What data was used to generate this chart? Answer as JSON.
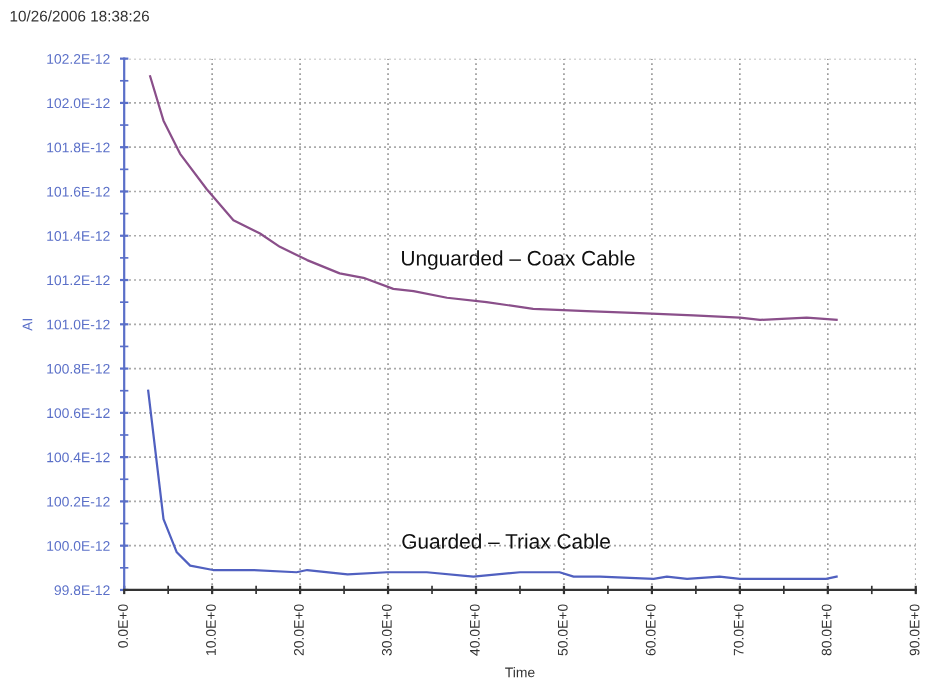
{
  "chart_data": {
    "type": "line",
    "title": "10/26/2006 18:38:26",
    "xlabel": "Time",
    "ylabel": "AI",
    "series": [
      {
        "color": "#8a4f8a",
        "x": [
          2.95,
          4.47,
          6.36,
          9.39,
          12.42,
          15.45,
          17.7,
          20.8,
          24.5,
          27.2,
          30.6,
          32.9,
          36.7,
          41.2,
          46.5,
          52.6,
          58.6,
          64.7,
          70.0,
          72.3,
          77.6,
          81.0
        ],
        "values": [
          1.0212e-10,
          1.0192e-10,
          1.0177e-10,
          1.0161e-10,
          1.0147e-10,
          1.0141e-10,
          1.0135e-10,
          1.0129e-10,
          1.0123e-10,
          1.0121e-10,
          1.0116e-10,
          1.0115e-10,
          1.0112e-10,
          1.011e-10,
          1.0107e-10,
          1.0106e-10,
          1.0105e-10,
          1.0104e-10,
          1.0103e-10,
          1.0102e-10,
          1.0103e-10,
          1.0102e-10
        ]
      },
      {
        "color": "#5060c0",
        "x": [
          2.73,
          4.47,
          5.98,
          7.5,
          10.1,
          14.7,
          19.6,
          20.8,
          25.4,
          29.9,
          34.4,
          39.7,
          45.0,
          49.5,
          51.1,
          54.1,
          60.2,
          61.7,
          64.0,
          67.7,
          70.0,
          75.3,
          79.8,
          81.0
        ],
        "values": [
          1.007e-10,
          1.0012e-10,
          9.997e-11,
          9.991e-11,
          9.989e-11,
          9.989e-11,
          9.988e-11,
          9.989e-11,
          9.987e-11,
          9.988e-11,
          9.988e-11,
          9.986e-11,
          9.988e-11,
          9.988e-11,
          9.986e-11,
          9.986e-11,
          9.985e-11,
          9.986e-11,
          9.985e-11,
          9.986e-11,
          9.985e-11,
          9.985e-11,
          9.985e-11,
          9.986e-11
        ]
      }
    ],
    "annotations": [
      "Unguarded – Coax Cable",
      "Guarded – Triax Cable"
    ],
    "xlim": [
      0,
      90
    ],
    "xticks": [
      {
        "value": 0,
        "label": "0.0E+0"
      },
      {
        "value": 5,
        "label": null
      },
      {
        "value": 10,
        "label": "10.0E+0"
      },
      {
        "value": 15,
        "label": null
      },
      {
        "value": 20,
        "label": "20.0E+0"
      },
      {
        "value": 25,
        "label": null
      },
      {
        "value": 30,
        "label": "30.0E+0"
      },
      {
        "value": 35,
        "label": null
      },
      {
        "value": 40,
        "label": "40.0E+0"
      },
      {
        "value": 45,
        "label": null
      },
      {
        "value": 50,
        "label": "50.0E+0"
      },
      {
        "value": 55,
        "label": null
      },
      {
        "value": 60,
        "label": "60.0E+0"
      },
      {
        "value": 65,
        "label": null
      },
      {
        "value": 70,
        "label": "70.0E+0"
      },
      {
        "value": 75,
        "label": null
      },
      {
        "value": 80,
        "label": "80.0E+0"
      },
      {
        "value": 85,
        "label": null
      },
      {
        "value": 90,
        "label": "90.0E+0"
      }
    ],
    "ylim": [
      9.98e-11,
      1.022e-10
    ],
    "yticks": [
      {
        "value": 9.98e-11,
        "label": "99.8E-12"
      },
      {
        "value": 9.99e-11,
        "label": null
      },
      {
        "value": 1e-10,
        "label": "100.0E-12"
      },
      {
        "value": 1.001e-10,
        "label": null
      },
      {
        "value": 1.002e-10,
        "label": "100.2E-12"
      },
      {
        "value": 1.003e-10,
        "label": null
      },
      {
        "value": 1.004e-10,
        "label": "100.4E-12"
      },
      {
        "value": 1.005e-10,
        "label": null
      },
      {
        "value": 1.006e-10,
        "label": "100.6E-12"
      },
      {
        "value": 1.007e-10,
        "label": null
      },
      {
        "value": 1.008e-10,
        "label": "100.8E-12"
      },
      {
        "value": 1.009e-10,
        "label": null
      },
      {
        "value": 1.01e-10,
        "label": "101.0E-12"
      },
      {
        "value": 1.011e-10,
        "label": null
      },
      {
        "value": 1.012e-10,
        "label": "101.2E-12"
      },
      {
        "value": 1.013e-10,
        "label": null
      },
      {
        "value": 1.014e-10,
        "label": "101.4E-12"
      },
      {
        "value": 1.015e-10,
        "label": null
      },
      {
        "value": 1.016e-10,
        "label": "101.6E-12"
      },
      {
        "value": 1.017e-10,
        "label": null
      },
      {
        "value": 1.018e-10,
        "label": "101.8E-12"
      },
      {
        "value": 1.019e-10,
        "label": null
      },
      {
        "value": 1.02e-10,
        "label": "102.0E-12"
      },
      {
        "value": 1.021e-10,
        "label": null
      },
      {
        "value": 1.022e-10,
        "label": "102.2E-12"
      }
    ],
    "grid": true,
    "line_style": "solid",
    "marker": "none"
  }
}
